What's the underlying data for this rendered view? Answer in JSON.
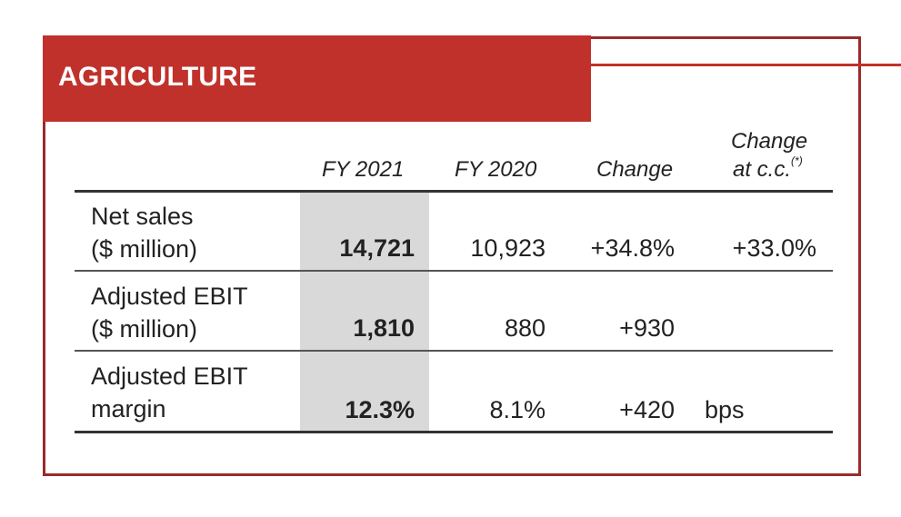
{
  "section": {
    "title": "AGRICULTURE",
    "accent_color": "#c0312b"
  },
  "table": {
    "headers": {
      "fy2021": "FY 2021",
      "fy2020": "FY 2020",
      "change": "Change",
      "change_cc_line1": "Change",
      "change_cc_line2": "at c.c.",
      "change_cc_note": "(*)"
    },
    "rows": [
      {
        "label_line1": "Net sales",
        "label_line2": "($ million)",
        "fy2021": "14,721",
        "fy2020": "10,923",
        "change": "+34.8%",
        "change_cc": "+33.0%"
      },
      {
        "label_line1": "Adjusted EBIT",
        "label_line2": "($ million)",
        "fy2021": "1,810",
        "fy2020": "880",
        "change": "+930",
        "change_cc": ""
      },
      {
        "label_line1": "Adjusted EBIT",
        "label_line2": "margin",
        "fy2021": "12.3%",
        "fy2020": "8.1%",
        "change": "+420",
        "change_cc": "bps"
      }
    ]
  }
}
